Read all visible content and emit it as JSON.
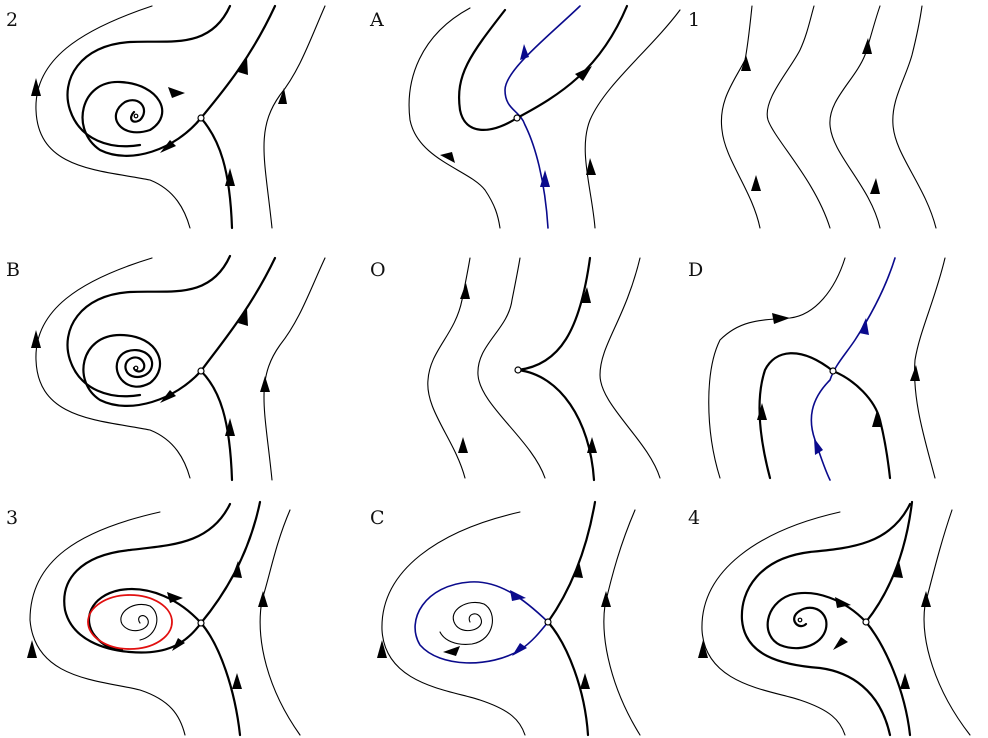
{
  "figure": {
    "panels": [
      {
        "id": "p2",
        "label": "2"
      },
      {
        "id": "pA",
        "label": "A"
      },
      {
        "id": "p1",
        "label": "1"
      },
      {
        "id": "pB",
        "label": "B"
      },
      {
        "id": "pO",
        "label": "O"
      },
      {
        "id": "pD",
        "label": "D"
      },
      {
        "id": "p3",
        "label": "3"
      },
      {
        "id": "pC",
        "label": "C"
      },
      {
        "id": "p4",
        "label": "4"
      }
    ]
  },
  "colors": {
    "trajectory": "#000000",
    "separatrix_highlight": "#0a0a8c",
    "limit_cycle": "#e10f0f",
    "background": "#ffffff"
  }
}
